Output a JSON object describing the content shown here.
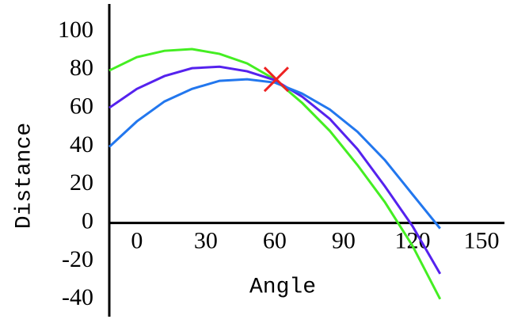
{
  "chart_data": {
    "type": "line",
    "x_label": "Angle",
    "y_label": "Distance",
    "x": [
      -12,
      0,
      12,
      24,
      36,
      48,
      60,
      72,
      84,
      96,
      108,
      120,
      132
    ],
    "series": [
      {
        "color": "#44ee22",
        "values": [
          79.7,
          86.7,
          90,
          90.9,
          88.4,
          83.4,
          75.1,
          62.7,
          48.1,
          30.3,
          10.8,
          -12,
          -39.8
        ]
      },
      {
        "color": "#5522ee",
        "values": [
          60.2,
          70.1,
          76.8,
          80.9,
          81.7,
          79.3,
          74.7,
          66,
          54.4,
          38.6,
          19.1,
          -1.7,
          -26.6
        ]
      },
      {
        "color": "#2277ee",
        "values": [
          39.8,
          53.1,
          63.5,
          70.1,
          74.3,
          75.1,
          73.4,
          67.6,
          59.3,
          47.7,
          32.8,
          14.9,
          -2.9
        ]
      }
    ],
    "marker": {
      "x": 60.7,
      "y": 75.1,
      "color": "#ee2222"
    },
    "xlim": [
      -12,
      160
    ],
    "xticks": [
      0,
      30,
      60,
      90,
      120,
      150
    ],
    "ylim": [
      -49,
      114.5
    ],
    "yticks": [
      -40,
      -20,
      0,
      20,
      40,
      60,
      80,
      100
    ]
  }
}
